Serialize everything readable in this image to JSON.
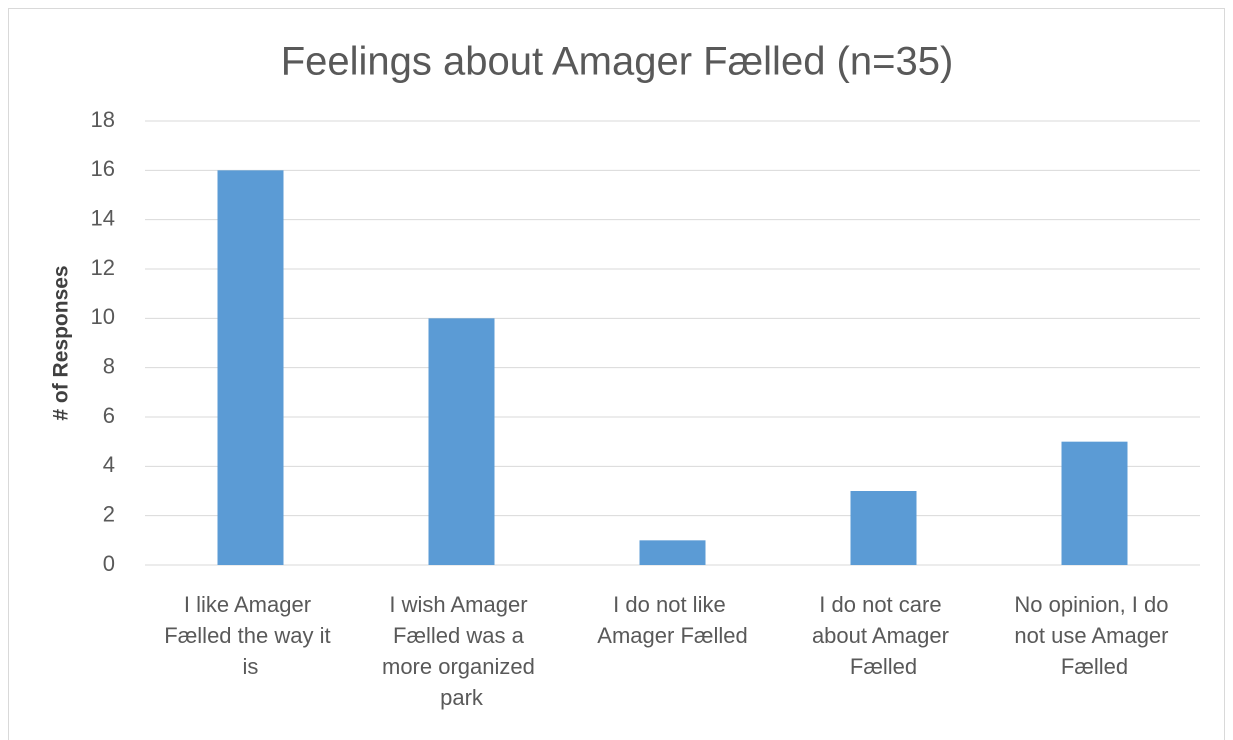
{
  "chart_data": {
    "type": "bar",
    "title": "Feelings about Amager Fælled (n=35)",
    "y_label": "# of Responses",
    "categories": [
      "I like Amager Fælled the way it is",
      "I wish Amager Fælled was a more organized park",
      "I do not like Amager Fælled",
      "I do not care about Amager Fælled",
      "No opinion, I do not use Amager Fælled"
    ],
    "values": [
      16,
      10,
      1,
      3,
      5
    ],
    "color": "#5b9bd5",
    "ylim": [
      0,
      18
    ],
    "yticks": [
      0,
      2,
      4,
      6,
      8,
      10,
      12,
      14,
      16,
      18
    ],
    "grid": true
  }
}
